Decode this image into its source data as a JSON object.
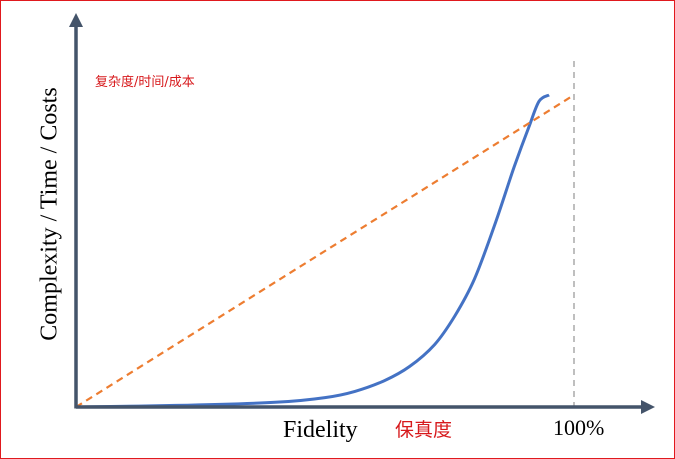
{
  "chart_data": {
    "type": "line",
    "title": "",
    "xlabel": "Fidelity",
    "xlabel_cn": "保真度",
    "ylabel": "Complexity / Time / Costs",
    "ylabel_cn": "复杂度/时间/成本",
    "xlim": [
      0,
      100
    ],
    "ylim": [
      0,
      100
    ],
    "x_ticks": [
      {
        "value": 100,
        "label": "100%"
      }
    ],
    "grid": false,
    "legend": "none",
    "series": [
      {
        "style": "solid",
        "color": "#4472c4",
        "x": [
          0,
          20,
          40,
          50,
          56,
          62,
          67,
          72,
          76,
          80,
          84,
          88,
          91,
          93,
          95
        ],
        "y": [
          0,
          0.5,
          1.5,
          3,
          5,
          8.5,
          13,
          20,
          29,
          41,
          58,
          77,
          90,
          98,
          100
        ]
      },
      {
        "style": "dashed",
        "color": "#ed7d31",
        "x": [
          0,
          100
        ],
        "y": [
          0,
          100
        ]
      }
    ],
    "reference_lines": [
      {
        "axis": "x",
        "value": 100,
        "style": "dashed",
        "color": "#bfbfbf"
      }
    ]
  }
}
